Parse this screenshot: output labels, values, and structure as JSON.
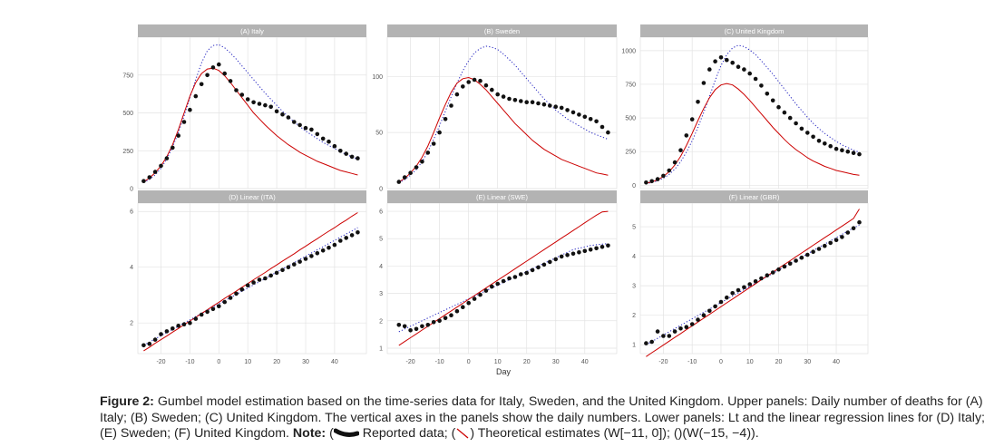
{
  "panels": [
    {
      "title": "(A) Italy",
      "yticks": [
        0,
        250,
        500,
        750
      ],
      "ylim": [
        0,
        1000
      ]
    },
    {
      "title": "(B) Sweden",
      "yticks": [
        0,
        50,
        100
      ],
      "ylim": [
        0,
        135
      ]
    },
    {
      "title": "(C) United Kingdom",
      "yticks": [
        0,
        250,
        500,
        750,
        1000
      ],
      "ylim": [
        -25,
        1100
      ]
    },
    {
      "title": "(D) Linear (ITA)",
      "yticks": [
        2,
        4,
        6
      ],
      "ylim": [
        0.9,
        6.3
      ]
    },
    {
      "title": "(E) Linear (SWE)",
      "yticks": [
        1,
        2,
        3,
        4,
        5,
        6
      ],
      "ylim": [
        0.8,
        6.3
      ]
    },
    {
      "title": "(F) Linear (GBR)",
      "yticks": [
        1,
        2,
        3,
        4,
        5
      ],
      "ylim": [
        0.7,
        5.8
      ]
    }
  ],
  "xticks": [
    -20,
    -10,
    0,
    10,
    20,
    30,
    40
  ],
  "xlim": [
    -28,
    51
  ],
  "xlabel": "Day",
  "caption": {
    "label": "Figure 2:",
    "text": " Gumbel model estimation based on the time-series data for Italy, Sweden, and the United Kingdom. Upper panels: Daily number of deaths for (A) Italy; (B) Sweden; (C) United Kingdom. The vertical axes in the panels show the daily numbers. Lower panels: Lt and the linear regression lines for (D) Italy; (E) Sweden; (F) United Kingdom. ",
    "note_label": "Note:",
    "reported": " Reported data; (",
    "theoretical": ") Theoretical estimates (W[−11, 0]); (",
    "tail": ")(W(−15, −4))."
  },
  "colors": {
    "panel_bg": "#ffffff",
    "grid": "#e3e3e3",
    "strip": "#b3b3b3",
    "strip_text": "#ffffff",
    "points": "#111111",
    "red": "#cc0000",
    "blue": "#1f1fbf"
  },
  "chart_data": [
    {
      "panel": "A",
      "type": "scatter+line",
      "title": "(A) Italy",
      "x": [
        -26,
        -24,
        -22,
        -20,
        -18,
        -16,
        -14,
        -12,
        -10,
        -8,
        -6,
        -4,
        -2,
        0,
        2,
        4,
        6,
        8,
        10,
        12,
        14,
        16,
        18,
        20,
        22,
        24,
        26,
        28,
        30,
        32,
        34,
        36,
        38,
        40,
        42,
        44,
        46,
        48
      ],
      "reported": [
        50,
        75,
        110,
        150,
        200,
        270,
        350,
        440,
        520,
        610,
        690,
        750,
        800,
        820,
        760,
        710,
        650,
        620,
        590,
        570,
        560,
        550,
        540,
        510,
        490,
        470,
        440,
        420,
        400,
        390,
        360,
        330,
        310,
        280,
        250,
        230,
        210,
        200
      ],
      "theoretical_red": [
        45,
        70,
        105,
        150,
        210,
        290,
        390,
        500,
        610,
        700,
        760,
        790,
        795,
        780,
        745,
        700,
        650,
        600,
        550,
        500,
        460,
        420,
        385,
        350,
        320,
        290,
        265,
        240,
        220,
        200,
        180,
        165,
        150,
        135,
        120,
        110,
        100,
        90
      ],
      "theoretical_blue": [
        40,
        60,
        90,
        135,
        195,
        275,
        370,
        480,
        600,
        720,
        830,
        910,
        945,
        950,
        930,
        895,
        855,
        810,
        765,
        720,
        675,
        630,
        590,
        550,
        510,
        475,
        440,
        410,
        380,
        355,
        330,
        305,
        285,
        265,
        245,
        225,
        210,
        195
      ],
      "ylim": [
        0,
        1000
      ]
    },
    {
      "panel": "B",
      "type": "scatter+line",
      "title": "(B) Sweden",
      "x": [
        -24,
        -22,
        -20,
        -18,
        -16,
        -14,
        -12,
        -10,
        -8,
        -6,
        -4,
        -2,
        0,
        2,
        4,
        6,
        8,
        10,
        12,
        14,
        16,
        18,
        20,
        22,
        24,
        26,
        28,
        30,
        32,
        34,
        36,
        38,
        40,
        42,
        44,
        46,
        48
      ],
      "reported": [
        6,
        10,
        14,
        19,
        24,
        32,
        40,
        50,
        62,
        74,
        84,
        91,
        95,
        97,
        96,
        92,
        88,
        84,
        82,
        80,
        79,
        78,
        77,
        77,
        76,
        75,
        74,
        73,
        72,
        70,
        68,
        66,
        64,
        62,
        60,
        55,
        50
      ],
      "theoretical_red": [
        6,
        9,
        14,
        20,
        28,
        38,
        50,
        63,
        75,
        86,
        94,
        98,
        99,
        97,
        93,
        88,
        82,
        76,
        70,
        64,
        58,
        53,
        48,
        43,
        39,
        35,
        32,
        29,
        26,
        24,
        22,
        20,
        18,
        16,
        14,
        13,
        12
      ],
      "theoretical_blue": [
        5,
        8,
        12,
        17,
        24,
        33,
        44,
        56,
        69,
        82,
        94,
        105,
        114,
        121,
        125,
        127,
        126,
        124,
        120,
        115,
        110,
        104,
        98,
        92,
        86,
        80,
        75,
        70,
        66,
        62,
        59,
        56,
        53,
        50,
        48,
        46,
        44
      ],
      "ylim": [
        0,
        135
      ]
    },
    {
      "panel": "C",
      "type": "scatter+line",
      "title": "(C) United Kingdom",
      "x": [
        -26,
        -24,
        -22,
        -20,
        -18,
        -16,
        -14,
        -12,
        -10,
        -8,
        -6,
        -4,
        -2,
        0,
        2,
        4,
        6,
        8,
        10,
        12,
        14,
        16,
        18,
        20,
        22,
        24,
        26,
        28,
        30,
        32,
        34,
        36,
        38,
        40,
        42,
        44,
        46,
        48
      ],
      "reported": [
        20,
        30,
        45,
        70,
        110,
        170,
        260,
        370,
        490,
        620,
        760,
        860,
        920,
        950,
        930,
        910,
        880,
        860,
        830,
        790,
        740,
        680,
        630,
        580,
        540,
        500,
        460,
        420,
        390,
        360,
        330,
        310,
        290,
        270,
        260,
        250,
        240,
        230
      ],
      "theoretical_red": [
        15,
        25,
        40,
        65,
        100,
        150,
        215,
        295,
        385,
        480,
        570,
        650,
        710,
        745,
        755,
        745,
        715,
        675,
        630,
        580,
        530,
        480,
        430,
        385,
        340,
        300,
        265,
        235,
        205,
        180,
        160,
        140,
        125,
        110,
        100,
        90,
        80,
        75
      ],
      "theoretical_blue": [
        12,
        20,
        32,
        52,
        80,
        120,
        175,
        245,
        330,
        430,
        540,
        660,
        780,
        890,
        970,
        1020,
        1040,
        1030,
        1005,
        970,
        925,
        875,
        825,
        770,
        715,
        660,
        605,
        555,
        505,
        460,
        420,
        385,
        355,
        325,
        300,
        280,
        260,
        245
      ],
      "ylim": [
        -25,
        1100
      ]
    },
    {
      "panel": "D",
      "type": "scatter+line",
      "title": "(D) Linear (ITA)",
      "x": [
        -26,
        -24,
        -22,
        -20,
        -18,
        -16,
        -14,
        -12,
        -10,
        -8,
        -6,
        -4,
        -2,
        0,
        2,
        4,
        6,
        8,
        10,
        12,
        14,
        16,
        18,
        20,
        22,
        24,
        26,
        28,
        30,
        32,
        34,
        36,
        38,
        40,
        42,
        44,
        46,
        48
      ],
      "reported": [
        1.2,
        1.25,
        1.4,
        1.6,
        1.7,
        1.8,
        1.9,
        1.95,
        2.0,
        2.15,
        2.3,
        2.4,
        2.5,
        2.6,
        2.75,
        2.9,
        3.05,
        3.2,
        3.35,
        3.45,
        3.55,
        3.6,
        3.7,
        3.8,
        3.9,
        4.0,
        4.1,
        4.2,
        4.3,
        4.4,
        4.5,
        4.6,
        4.7,
        4.8,
        4.95,
        5.05,
        5.15,
        5.25
      ],
      "theoretical_red": [
        1.0,
        1.13,
        1.27,
        1.4,
        1.53,
        1.67,
        1.8,
        1.94,
        2.07,
        2.2,
        2.34,
        2.47,
        2.61,
        2.74,
        2.88,
        3.01,
        3.14,
        3.28,
        3.41,
        3.55,
        3.68,
        3.81,
        3.95,
        4.08,
        4.22,
        4.35,
        4.48,
        4.62,
        4.75,
        4.89,
        5.02,
        5.16,
        5.29,
        5.42,
        5.56,
        5.69,
        5.83,
        5.96
      ],
      "theoretical_blue": [
        1.2,
        1.31,
        1.43,
        1.54,
        1.66,
        1.77,
        1.88,
        2.0,
        2.11,
        2.23,
        2.34,
        2.45,
        2.57,
        2.68,
        2.8,
        2.91,
        3.02,
        3.14,
        3.25,
        3.37,
        3.48,
        3.59,
        3.71,
        3.82,
        3.94,
        4.05,
        4.16,
        4.28,
        4.39,
        4.51,
        4.62,
        4.73,
        4.85,
        4.96,
        5.08,
        5.19,
        5.3,
        5.42
      ],
      "ylim": [
        0.9,
        6.3
      ]
    },
    {
      "panel": "E",
      "type": "scatter+line",
      "title": "(E) Linear (SWE)",
      "x": [
        -24,
        -22,
        -20,
        -18,
        -16,
        -14,
        -12,
        -10,
        -8,
        -6,
        -4,
        -2,
        0,
        2,
        4,
        6,
        8,
        10,
        12,
        14,
        16,
        18,
        20,
        22,
        24,
        26,
        28,
        30,
        32,
        34,
        36,
        38,
        40,
        42,
        44,
        46,
        48
      ],
      "reported": [
        1.85,
        1.8,
        1.65,
        1.7,
        1.8,
        1.85,
        1.95,
        2.0,
        2.1,
        2.2,
        2.35,
        2.5,
        2.65,
        2.8,
        2.95,
        3.1,
        3.25,
        3.35,
        3.45,
        3.55,
        3.6,
        3.7,
        3.75,
        3.85,
        3.95,
        4.05,
        4.15,
        4.25,
        4.35,
        4.4,
        4.45,
        4.5,
        4.55,
        4.6,
        4.65,
        4.7,
        4.75
      ],
      "theoretical_red": [
        1.1,
        1.24,
        1.38,
        1.52,
        1.66,
        1.8,
        1.94,
        2.08,
        2.22,
        2.36,
        2.5,
        2.64,
        2.78,
        2.92,
        3.06,
        3.2,
        3.34,
        3.48,
        3.62,
        3.76,
        3.9,
        4.04,
        4.18,
        4.32,
        4.46,
        4.6,
        4.74,
        4.88,
        5.02,
        5.16,
        5.3,
        5.44,
        5.58,
        5.72,
        5.86,
        5.98,
        6.0
      ],
      "theoretical_blue": [
        1.6,
        1.7,
        1.8,
        1.9,
        2.0,
        2.1,
        2.2,
        2.3,
        2.4,
        2.5,
        2.6,
        2.7,
        2.8,
        2.9,
        3.0,
        3.1,
        3.2,
        3.3,
        3.4,
        3.5,
        3.6,
        3.7,
        3.8,
        3.9,
        4.0,
        4.1,
        4.2,
        4.3,
        4.4,
        4.5,
        4.6,
        4.65,
        4.7,
        4.75,
        4.78,
        4.8,
        4.82
      ],
      "ylim": [
        0.8,
        6.3
      ]
    },
    {
      "panel": "F",
      "type": "scatter+line",
      "title": "(F) Linear (GBR)",
      "x": [
        -26,
        -24,
        -22,
        -20,
        -18,
        -16,
        -14,
        -12,
        -10,
        -8,
        -6,
        -4,
        -2,
        0,
        2,
        4,
        6,
        8,
        10,
        12,
        14,
        16,
        18,
        20,
        22,
        24,
        26,
        28,
        30,
        32,
        34,
        36,
        38,
        40,
        42,
        44,
        46,
        48
      ],
      "reported": [
        1.05,
        1.1,
        1.45,
        1.3,
        1.3,
        1.45,
        1.55,
        1.6,
        1.7,
        1.85,
        2.0,
        2.15,
        2.3,
        2.45,
        2.6,
        2.75,
        2.85,
        2.95,
        3.05,
        3.15,
        3.25,
        3.35,
        3.45,
        3.55,
        3.65,
        3.75,
        3.85,
        3.95,
        4.05,
        4.15,
        4.25,
        4.35,
        4.45,
        4.55,
        4.65,
        4.8,
        4.95,
        5.15
      ],
      "theoretical_red": [
        0.6,
        0.73,
        0.86,
        0.99,
        1.12,
        1.25,
        1.38,
        1.51,
        1.64,
        1.77,
        1.9,
        2.03,
        2.16,
        2.29,
        2.42,
        2.55,
        2.68,
        2.81,
        2.94,
        3.07,
        3.2,
        3.33,
        3.46,
        3.59,
        3.72,
        3.85,
        3.98,
        4.11,
        4.24,
        4.37,
        4.5,
        4.63,
        4.76,
        4.89,
        5.02,
        5.15,
        5.28,
        5.6
      ],
      "theoretical_blue": [
        1.0,
        1.11,
        1.22,
        1.33,
        1.44,
        1.55,
        1.66,
        1.77,
        1.88,
        1.99,
        2.1,
        2.21,
        2.32,
        2.43,
        2.54,
        2.65,
        2.76,
        2.87,
        2.98,
        3.09,
        3.2,
        3.31,
        3.42,
        3.53,
        3.64,
        3.75,
        3.86,
        3.97,
        4.08,
        4.19,
        4.3,
        4.41,
        4.52,
        4.63,
        4.74,
        4.85,
        4.96,
        5.05
      ],
      "ylim": [
        0.7,
        5.8
      ]
    }
  ]
}
